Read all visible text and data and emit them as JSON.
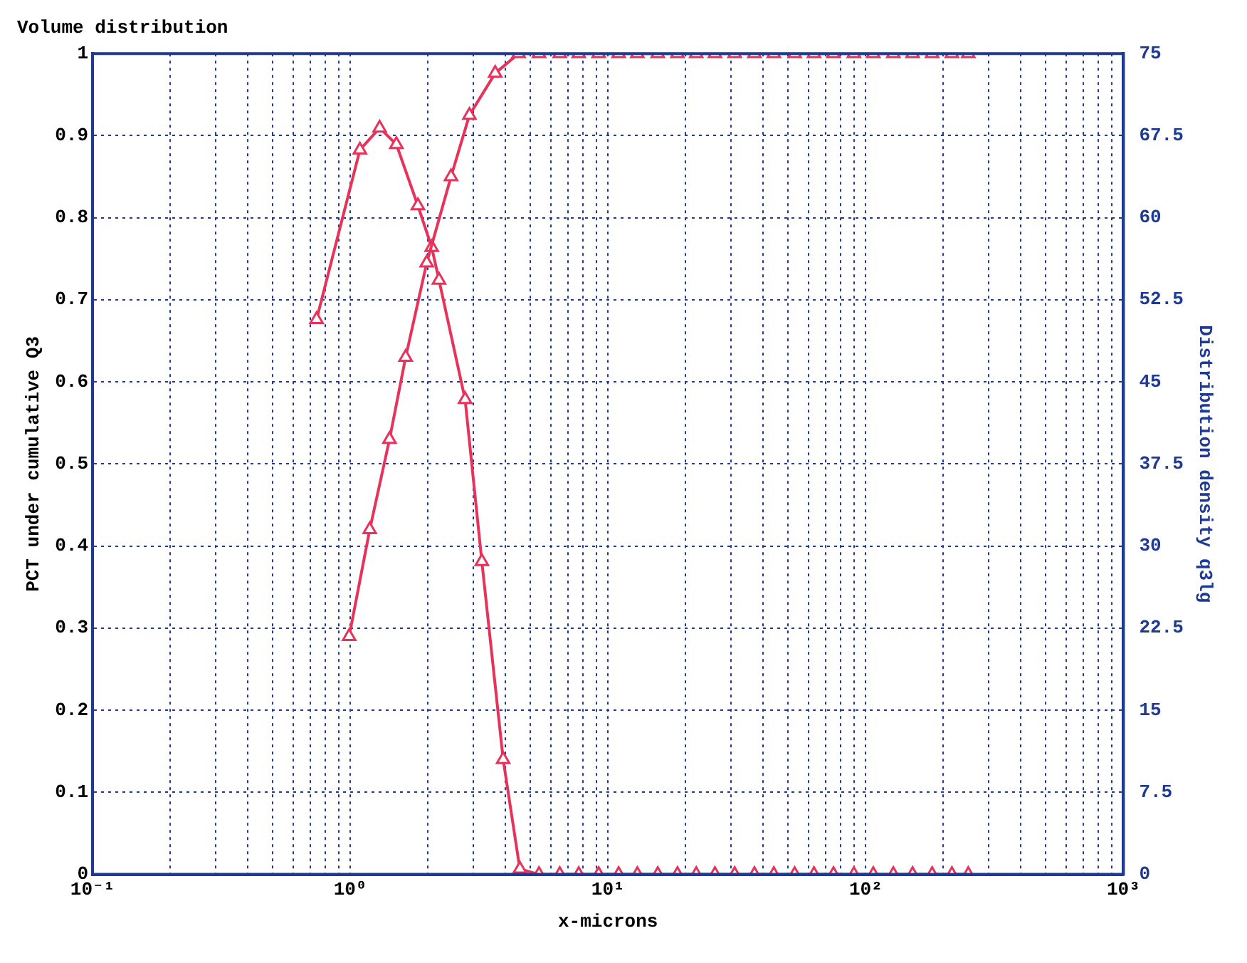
{
  "chart_data": {
    "type": "line",
    "title": "Volume distribution",
    "xlabel": "x-microns",
    "ylabel": "PCT under cumulative Q3",
    "y2label": "Distribution density q3lg",
    "log": "x",
    "grid": true,
    "legend": false,
    "marker": "triangle",
    "line_style": "solid",
    "xlim": [
      0.1,
      1000
    ],
    "xticks": [
      {
        "value": 0.1,
        "label": "10⁻¹"
      },
      {
        "value": 0.2,
        "label": null
      },
      {
        "value": 0.3,
        "label": null
      },
      {
        "value": 0.4,
        "label": null
      },
      {
        "value": 0.5,
        "label": null
      },
      {
        "value": 0.6,
        "label": null
      },
      {
        "value": 0.7,
        "label": null
      },
      {
        "value": 0.8,
        "label": null
      },
      {
        "value": 0.9,
        "label": null
      },
      {
        "value": 1,
        "label": "10⁰"
      },
      {
        "value": 2,
        "label": null
      },
      {
        "value": 3,
        "label": null
      },
      {
        "value": 4,
        "label": null
      },
      {
        "value": 5,
        "label": null
      },
      {
        "value": 6,
        "label": null
      },
      {
        "value": 7,
        "label": null
      },
      {
        "value": 8,
        "label": null
      },
      {
        "value": 9,
        "label": null
      },
      {
        "value": 10,
        "label": "10¹"
      },
      {
        "value": 20,
        "label": null
      },
      {
        "value": 30,
        "label": null
      },
      {
        "value": 40,
        "label": null
      },
      {
        "value": 50,
        "label": null
      },
      {
        "value": 60,
        "label": null
      },
      {
        "value": 70,
        "label": null
      },
      {
        "value": 80,
        "label": null
      },
      {
        "value": 90,
        "label": null
      },
      {
        "value": 100,
        "label": "10²"
      },
      {
        "value": 200,
        "label": null
      },
      {
        "value": 300,
        "label": null
      },
      {
        "value": 400,
        "label": null
      },
      {
        "value": 500,
        "label": null
      },
      {
        "value": 600,
        "label": null
      },
      {
        "value": 700,
        "label": null
      },
      {
        "value": 800,
        "label": null
      },
      {
        "value": 900,
        "label": null
      },
      {
        "value": 1000,
        "label": "10³"
      }
    ],
    "ylim": [
      0,
      1
    ],
    "yticks": [
      0,
      0.1,
      0.2,
      0.3,
      0.4,
      0.5,
      0.6,
      0.7,
      0.8,
      0.9,
      1
    ],
    "y2lim": [
      0,
      75
    ],
    "y2ticks": [
      0,
      7.5,
      15,
      22.5,
      30,
      37.5,
      45,
      52.5,
      60,
      67.5,
      75
    ],
    "series": [
      {
        "color": "#e8325a",
        "x": [
          0.99,
          1.19,
          1.42,
          1.64,
          1.98,
          2.46,
          2.9,
          3.65,
          4.5,
          5.4,
          6.5,
          7.7,
          9.2,
          11,
          13,
          15.6,
          18.6,
          22,
          26,
          31,
          37,
          44,
          53,
          63,
          75,
          90,
          107,
          128,
          152,
          181,
          216,
          250
        ],
        "values": [
          0.29,
          0.42,
          0.53,
          0.63,
          0.745,
          0.85,
          0.925,
          0.976,
          1,
          1,
          1,
          1,
          1,
          1,
          1,
          1,
          1,
          1,
          1,
          1,
          1,
          1,
          1,
          1,
          1,
          1,
          1,
          1,
          1,
          1,
          1,
          1
        ]
      },
      {
        "color": "#e8325a",
        "axis": "y2",
        "x": [
          0.74,
          1.09,
          1.3,
          1.51,
          1.83,
          2.07,
          2.21,
          2.79,
          3.24,
          3.92,
          4.55,
          5.4,
          6.5,
          7.7,
          9.2,
          11,
          13,
          15.6,
          18.6,
          22,
          26,
          31,
          37,
          44,
          53,
          63,
          75,
          90,
          107,
          128,
          152,
          181,
          216,
          250
        ],
        "values": [
          50.7,
          66.2,
          68.2,
          66.7,
          61.1,
          57.3,
          54.3,
          43.4,
          28.6,
          10.5,
          0.5,
          0,
          0,
          0,
          0,
          0,
          0,
          0,
          0,
          0,
          0,
          0,
          0,
          0,
          0,
          0,
          0,
          0,
          0,
          0,
          0,
          0,
          0,
          0
        ]
      }
    ]
  }
}
